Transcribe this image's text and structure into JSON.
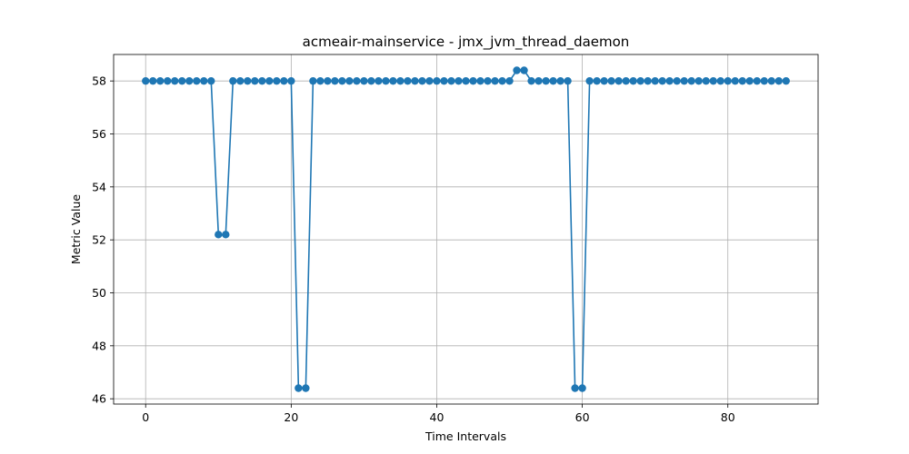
{
  "chart_data": {
    "type": "line",
    "title": "acmeair-mainservice - jmx_jvm_thread_daemon",
    "xlabel": "Time Intervals",
    "ylabel": "Metric Value",
    "xlim": [
      -4.4,
      92.4
    ],
    "ylim": [
      45.8,
      59.0
    ],
    "xticks": [
      0,
      20,
      40,
      60,
      80
    ],
    "yticks": [
      46,
      48,
      50,
      52,
      54,
      56,
      58
    ],
    "grid": true,
    "markers": true,
    "series": [
      {
        "color": "#1f77b4",
        "x": [
          0,
          1,
          2,
          3,
          4,
          5,
          6,
          7,
          8,
          9,
          10,
          11,
          12,
          13,
          14,
          15,
          16,
          17,
          18,
          19,
          20,
          21,
          22,
          23,
          24,
          25,
          26,
          27,
          28,
          29,
          30,
          31,
          32,
          33,
          34,
          35,
          36,
          37,
          38,
          39,
          40,
          41,
          42,
          43,
          44,
          45,
          46,
          47,
          48,
          49,
          50,
          51,
          52,
          53,
          54,
          55,
          56,
          57,
          58,
          59,
          60,
          61,
          62,
          63,
          64,
          65,
          66,
          67,
          68,
          69,
          70,
          71,
          72,
          73,
          74,
          75,
          76,
          77,
          78,
          79,
          80,
          81,
          82,
          83,
          84,
          85,
          86,
          87,
          88
        ],
        "y": [
          58,
          58,
          58,
          58,
          58,
          58,
          58,
          58,
          58,
          58,
          52.2,
          52.2,
          58,
          58,
          58,
          58,
          58,
          58,
          58,
          58,
          58,
          46.4,
          46.4,
          58,
          58,
          58,
          58,
          58,
          58,
          58,
          58,
          58,
          58,
          58,
          58,
          58,
          58,
          58,
          58,
          58,
          58,
          58,
          58,
          58,
          58,
          58,
          58,
          58,
          58,
          58,
          58,
          58.4,
          58.4,
          58,
          58,
          58,
          58,
          58,
          58,
          46.4,
          46.4,
          58,
          58,
          58,
          58,
          58,
          58,
          58,
          58,
          58,
          58,
          58,
          58,
          58,
          58,
          58,
          58,
          58,
          58,
          58,
          58,
          58,
          58,
          58,
          58,
          58,
          58,
          58,
          58
        ]
      }
    ]
  }
}
